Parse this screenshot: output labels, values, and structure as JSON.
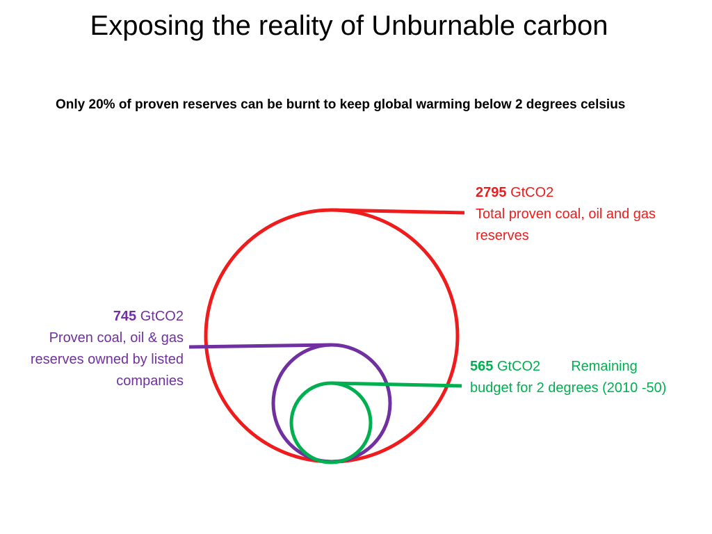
{
  "slide": {
    "title": "Exposing the reality of Unburnable carbon",
    "subtitle": "Only 20% of proven reserves can be burnt to keep global warming below 2 degrees celsius"
  },
  "circles": [
    {
      "id": "total",
      "value": "2795",
      "unit": "GtCO2",
      "description": "Total proven coal, oil and gas reserves",
      "color": "#ee1c1c"
    },
    {
      "id": "listed",
      "value": "745",
      "unit": "GtCO2",
      "description": "Proven coal, oil & gas reserves owned by listed companies",
      "color": "#7030a0"
    },
    {
      "id": "budget",
      "value": "565",
      "unit": "GtCO2",
      "description": "Remaining budget for 2 degrees (2010 -50)",
      "color": "#00b050"
    }
  ]
}
